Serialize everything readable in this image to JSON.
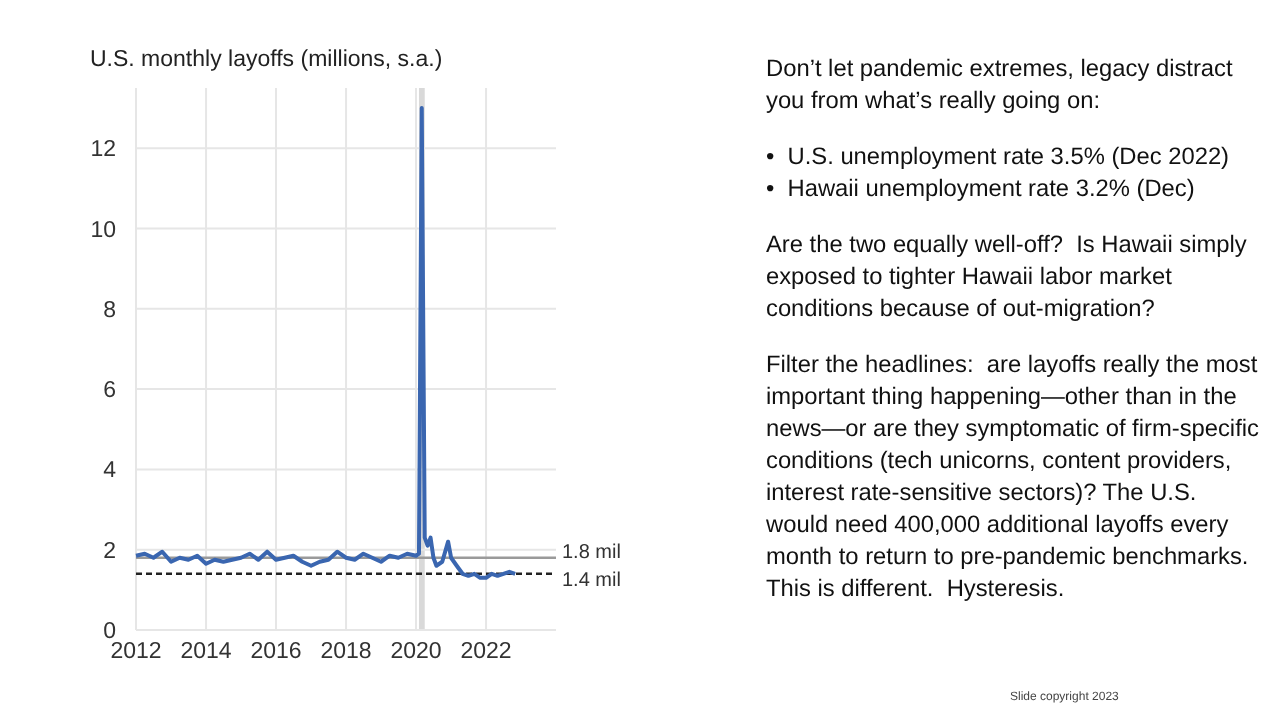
{
  "chart_data": {
    "type": "line",
    "title": "U.S. monthly layoffs (millions, s.a.)",
    "x": [
      "2012-01",
      "2012-04",
      "2012-07",
      "2012-10",
      "2013-01",
      "2013-04",
      "2013-07",
      "2013-10",
      "2014-01",
      "2014-04",
      "2014-07",
      "2014-10",
      "2015-01",
      "2015-04",
      "2015-07",
      "2015-10",
      "2016-01",
      "2016-04",
      "2016-07",
      "2016-10",
      "2017-01",
      "2017-04",
      "2017-07",
      "2017-10",
      "2018-01",
      "2018-04",
      "2018-07",
      "2018-10",
      "2019-01",
      "2019-04",
      "2019-07",
      "2019-10",
      "2020-01",
      "2020-02",
      "2020-03",
      "2020-04",
      "2020-05",
      "2020-06",
      "2020-07",
      "2020-08",
      "2020-10",
      "2020-12",
      "2021-01",
      "2021-03",
      "2021-05",
      "2021-07",
      "2021-09",
      "2021-11",
      "2022-01",
      "2022-03",
      "2022-05",
      "2022-07",
      "2022-09",
      "2022-11"
    ],
    "series": [
      {
        "color": "#3a66b0",
        "values": [
          1.85,
          1.9,
          1.8,
          1.95,
          1.7,
          1.8,
          1.75,
          1.85,
          1.65,
          1.75,
          1.7,
          1.75,
          1.8,
          1.9,
          1.75,
          1.95,
          1.75,
          1.8,
          1.85,
          1.7,
          1.6,
          1.7,
          1.75,
          1.95,
          1.8,
          1.75,
          1.9,
          1.8,
          1.7,
          1.85,
          1.8,
          1.9,
          1.85,
          1.9,
          13.0,
          2.3,
          2.1,
          2.3,
          1.8,
          1.6,
          1.7,
          2.2,
          1.8,
          1.6,
          1.4,
          1.35,
          1.4,
          1.3,
          1.3,
          1.4,
          1.35,
          1.4,
          1.45,
          1.4
        ]
      }
    ],
    "xlim": [
      "2012-01",
      "2024-01"
    ],
    "xticks": [
      {
        "value": "2012-01",
        "label": "2012"
      },
      {
        "value": "2014-01",
        "label": "2014"
      },
      {
        "value": "2016-01",
        "label": "2016"
      },
      {
        "value": "2018-01",
        "label": "2018"
      },
      {
        "value": "2020-01",
        "label": "2020"
      },
      {
        "value": "2022-01",
        "label": "2022"
      }
    ],
    "ylim": [
      0,
      13.5
    ],
    "yticks": [
      0,
      2,
      4,
      6,
      8,
      10,
      12
    ],
    "grid": true,
    "line_style": "solid",
    "bands": [
      {
        "axis": "x",
        "from": "2020-02",
        "to": "2020-04",
        "color": "#d9d9d9"
      }
    ],
    "ref_lines": [
      {
        "axis": "y",
        "value": 1.8,
        "label": "1.8 mil",
        "color": "#9a9a9a",
        "line_style": "solid"
      },
      {
        "axis": "y",
        "value": 1.4,
        "label": "1.4 mil",
        "color": "#222222",
        "line_style": "dashed"
      }
    ],
    "annotations": [
      "Don’t let pandemic extremes, legacy distract you from what’s really going on:",
      "•  U.S. unemployment rate 3.5% (Dec 2022)",
      "•  Hawaii unemployment rate 3.2% (Dec)",
      "Are the two equally well-off?  Is Hawaii simply exposed to tighter Hawaii labor market conditions because of out-migration?",
      "Filter the headlines:  are layoffs really the most important thing happening—other than in the news—or are they symptomatic of firm-specific conditions (tech unicorns, content providers, interest rate-sensitive sectors)? The U.S. would need 400,000 additional layoffs every month to return to pre-pandemic benchmarks.  This is different.  Hysteresis.",
      "Slide copyright 2023"
    ]
  }
}
